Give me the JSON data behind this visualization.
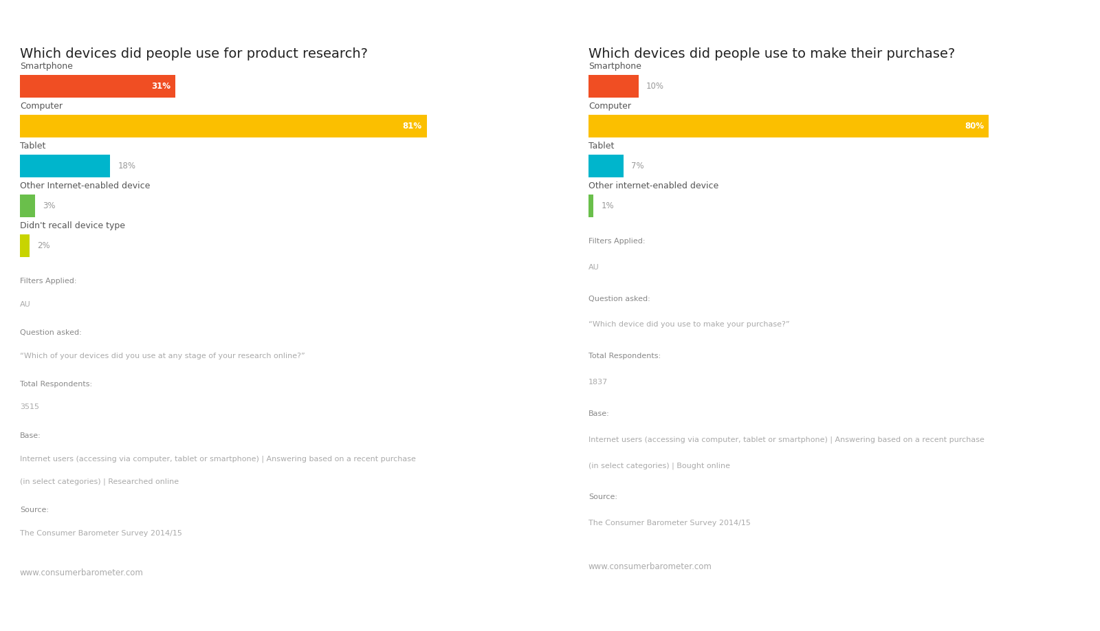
{
  "left_title": "Which devices did people use for product research?",
  "right_title": "Which devices did people use to make their purchase?",
  "left_bars": [
    {
      "label": "Smartphone",
      "value": 31,
      "color": "#f04e23"
    },
    {
      "label": "Computer",
      "value": 81,
      "color": "#fbbf00"
    },
    {
      "label": "Tablet",
      "value": 18,
      "color": "#00b5cc"
    },
    {
      "label": "Other Internet-enabled device",
      "value": 3,
      "color": "#6abf4b"
    },
    {
      "label": "Didn't recall device type",
      "value": 2,
      "color": "#c8d400"
    }
  ],
  "right_bars": [
    {
      "label": "Smartphone",
      "value": 10,
      "color": "#f04e23"
    },
    {
      "label": "Computer",
      "value": 80,
      "color": "#fbbf00"
    },
    {
      "label": "Tablet",
      "value": 7,
      "color": "#00b5cc"
    },
    {
      "label": "Other internet-enabled device",
      "value": 1,
      "color": "#6abf4b"
    }
  ],
  "left_meta": [
    {
      "bold": false,
      "text": "Filters Applied:"
    },
    {
      "bold": false,
      "text": "AU",
      "gap": true
    },
    {
      "bold": false,
      "text": "Question asked:"
    },
    {
      "bold": false,
      "text": "“Which of your devices did you use at any stage of your research online?”",
      "gap": true
    },
    {
      "bold": false,
      "text": "Total Respondents:"
    },
    {
      "bold": false,
      "text": "3515",
      "gap": true
    },
    {
      "bold": false,
      "text": "Base:"
    },
    {
      "bold": false,
      "text": "Internet users (accessing via computer, tablet or smartphone) | Answering based on a recent purchase",
      "gap": false
    },
    {
      "bold": false,
      "text": "(in select categories) | Researched online",
      "gap": true
    },
    {
      "bold": false,
      "text": "Source:"
    },
    {
      "bold": false,
      "text": "The Consumer Barometer Survey 2014/15",
      "gap": true
    }
  ],
  "right_meta": [
    {
      "bold": false,
      "text": "Filters Applied:"
    },
    {
      "bold": false,
      "text": "AU",
      "gap": true
    },
    {
      "bold": false,
      "text": "Question asked:"
    },
    {
      "bold": false,
      "text": "“Which device did you use to make your purchase?”",
      "gap": true
    },
    {
      "bold": false,
      "text": "Total Respondents:"
    },
    {
      "bold": false,
      "text": "1837",
      "gap": true
    },
    {
      "bold": false,
      "text": "Base:"
    },
    {
      "bold": false,
      "text": "Internet users (accessing via computer, tablet or smartphone) | Answering based on a recent purchase",
      "gap": false
    },
    {
      "bold": false,
      "text": "(in select categories) | Bought online",
      "gap": true
    },
    {
      "bold": false,
      "text": "Source:"
    },
    {
      "bold": false,
      "text": "The Consumer Barometer Survey 2014/15",
      "gap": true
    }
  ],
  "website": "www.consumerbarometer.com",
  "bg_color": "#ffffff",
  "bar_bg_color": "#f2f5f8",
  "label_color": "#555555",
  "meta_header_color": "#888888",
  "meta_value_color": "#aaaaaa",
  "title_fontsize": 14,
  "label_fontsize": 9,
  "pct_fontsize": 8.5,
  "meta_fontsize": 8,
  "web_fontsize": 8.5
}
